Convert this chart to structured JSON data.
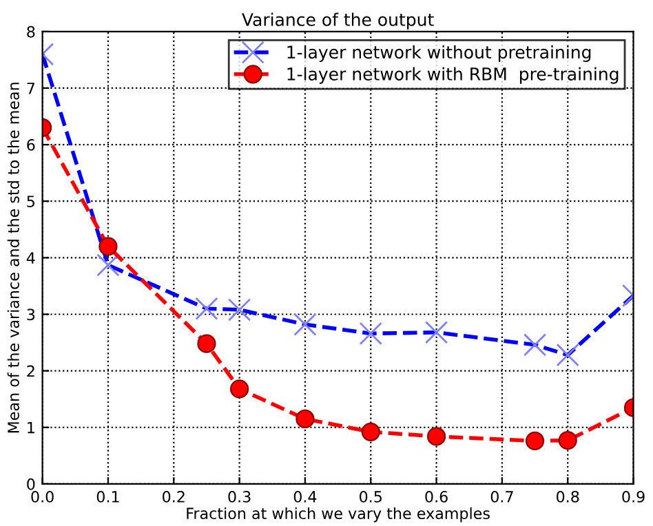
{
  "chart_data": {
    "type": "line",
    "title": "Variance of the output",
    "xlabel": "Fraction at which we vary the examples",
    "ylabel": "Mean of the variance and the std to the mean",
    "x": [
      0.0,
      0.1,
      0.25,
      0.3,
      0.4,
      0.5,
      0.6,
      0.75,
      0.8,
      0.9
    ],
    "series": [
      {
        "name": "1-layer network without pretraining",
        "color": "#0000ff",
        "marker": "cross",
        "values": [
          7.6,
          3.87,
          3.1,
          3.08,
          2.82,
          2.66,
          2.68,
          2.46,
          2.28,
          3.33
        ]
      },
      {
        "name": "1-layer network with RBM  pre-training",
        "color": "#ff0000",
        "marker": "circle",
        "values": [
          6.3,
          4.2,
          2.48,
          1.68,
          1.15,
          0.92,
          0.84,
          0.76,
          0.77,
          1.35
        ]
      }
    ],
    "line_style": "dashed",
    "grid": true,
    "legend": "top right",
    "xlim": [
      0.0,
      0.9
    ],
    "xticks": [
      {
        "value": 0,
        "label": "0.0"
      },
      0.1,
      0.2,
      0.3,
      0.4,
      0.5,
      0.6,
      0.7,
      0.8,
      0.9
    ],
    "ylim": [
      0,
      8
    ],
    "yticks": [
      0,
      1,
      2,
      3,
      4,
      5,
      6,
      7,
      8
    ]
  }
}
